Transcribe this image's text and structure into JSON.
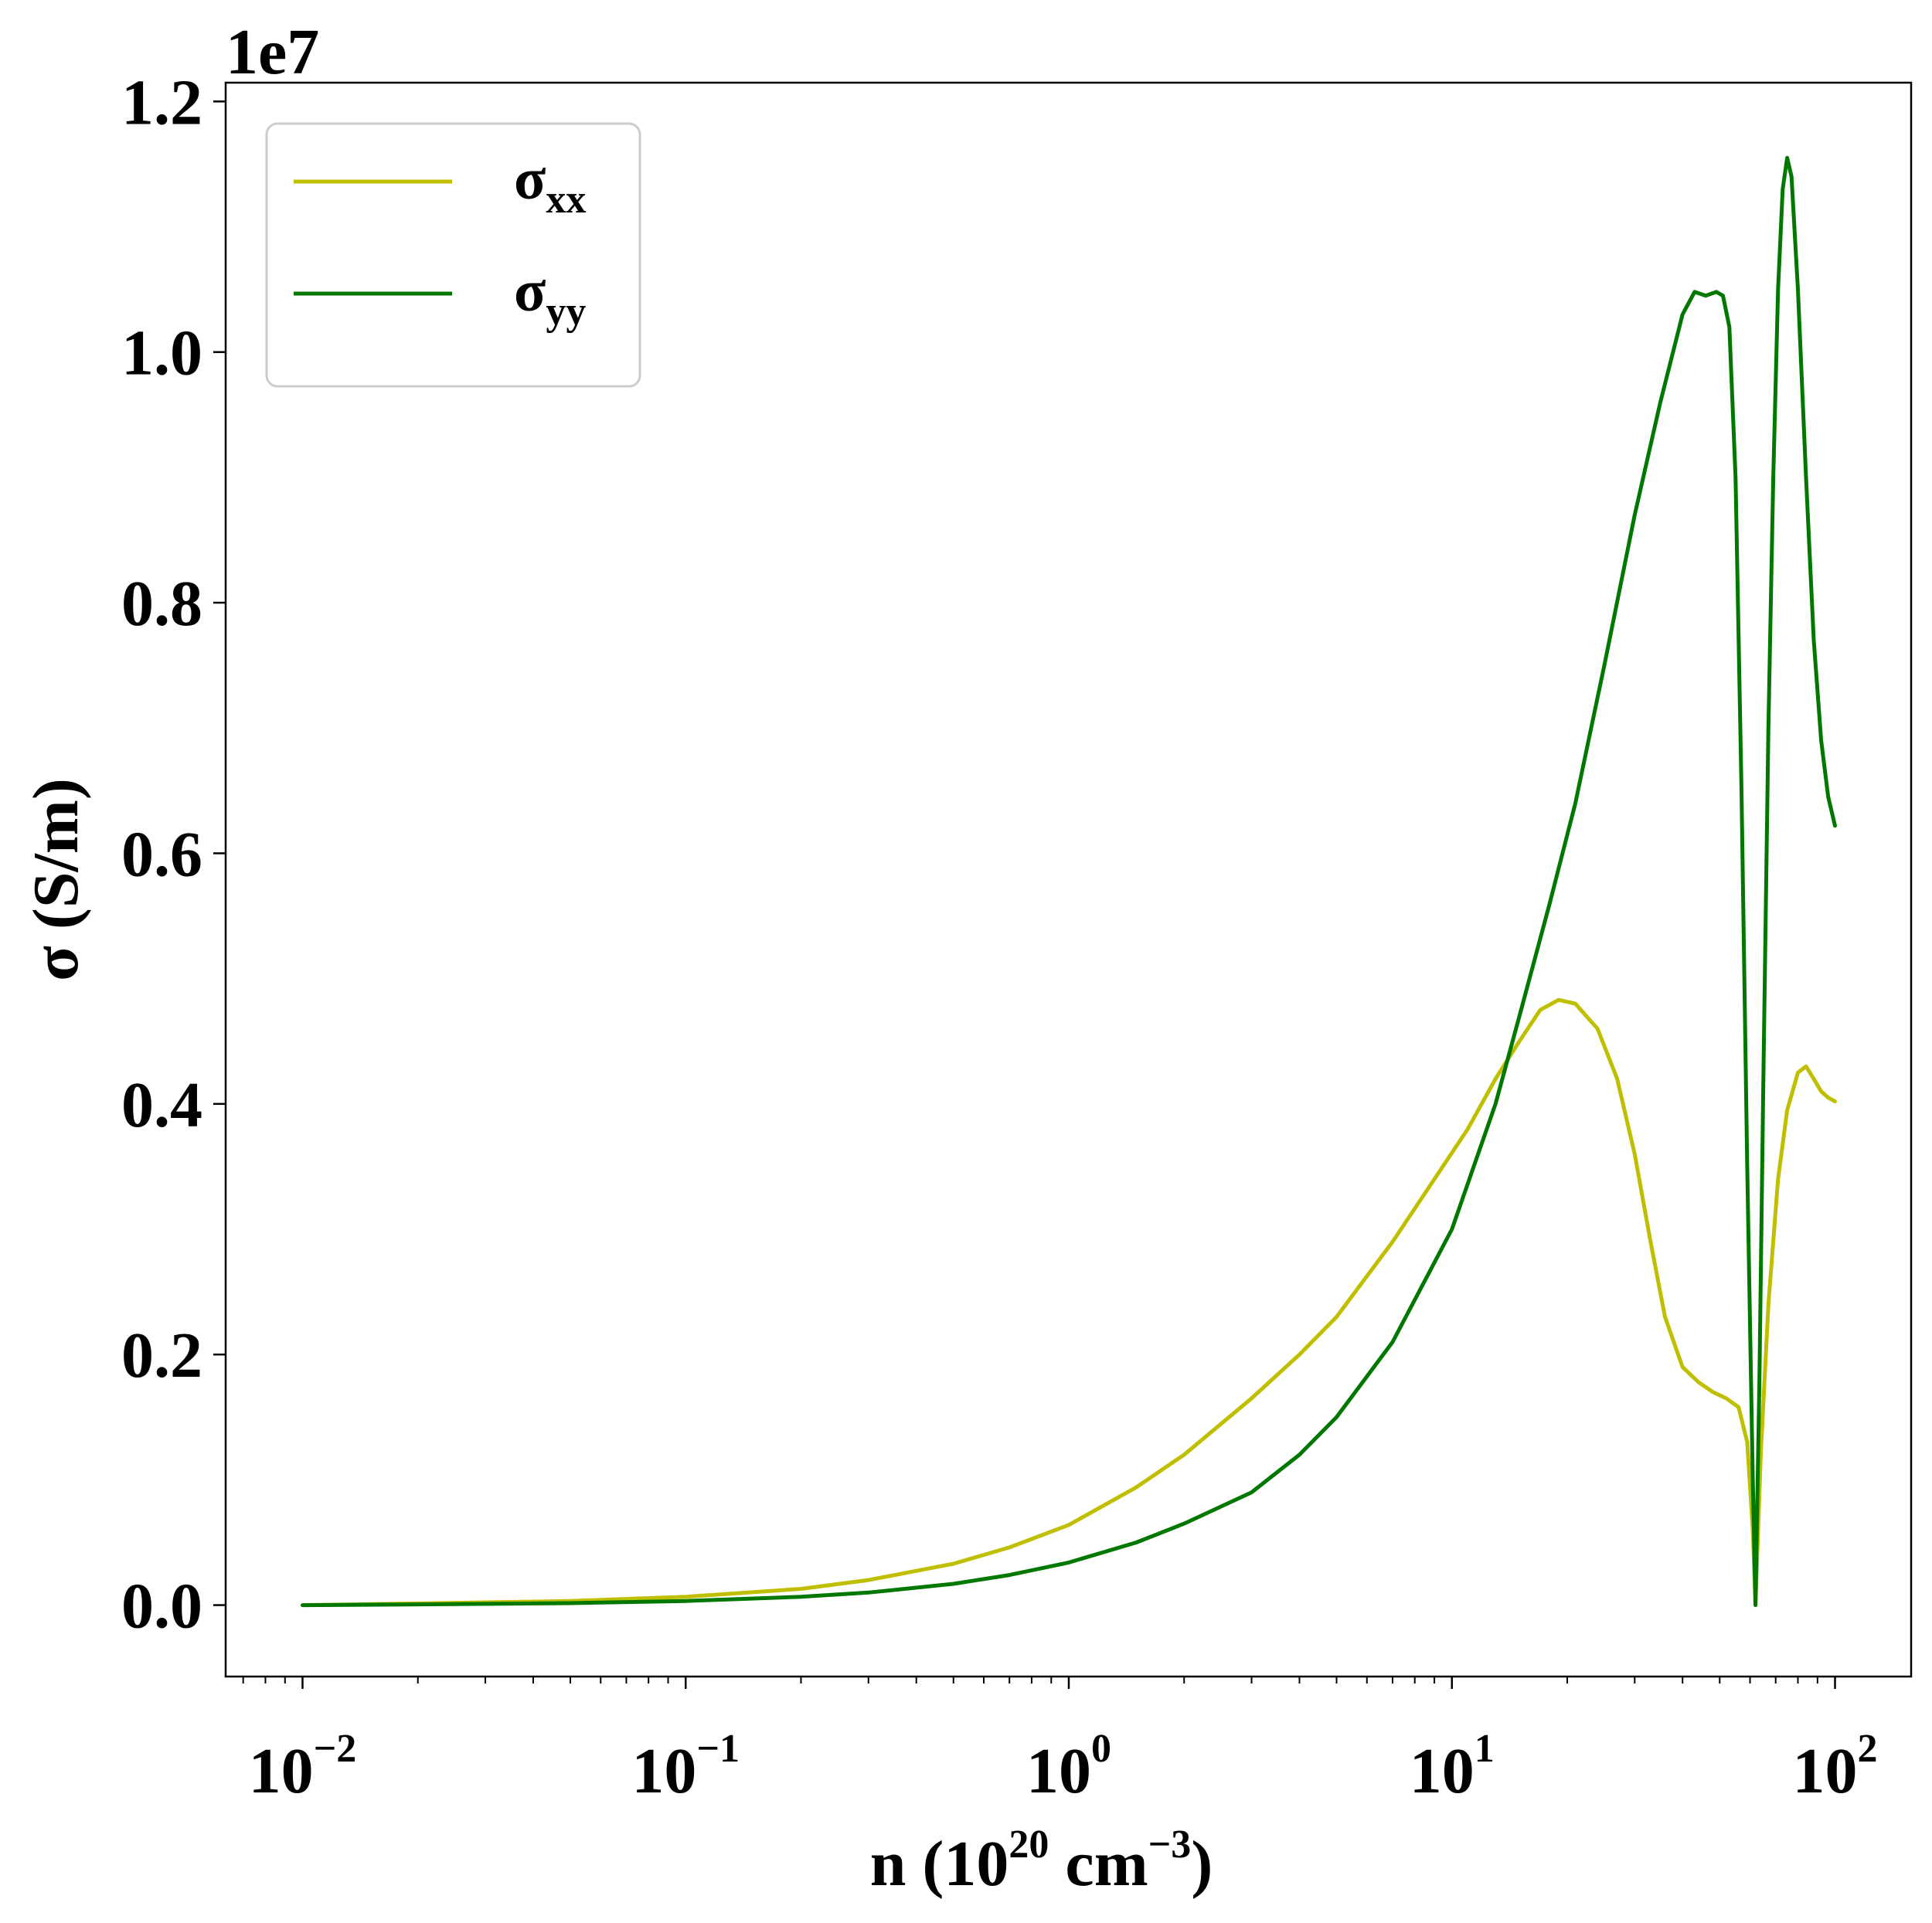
{
  "chart_data": {
    "type": "line",
    "title": "",
    "xlabel": {
      "base": "n (10",
      "sup1": "20",
      "mid": " cm",
      "sup2": "−3",
      "end": ")"
    },
    "ylabel": "σ (S/m)",
    "y_multiplier": "1e7",
    "xscale": "log",
    "xlim": [
      0.0063,
      158
    ],
    "ylim": [
      -0.057,
      1.215
    ],
    "x_ticks": [
      0.01,
      0.1,
      1,
      10,
      100
    ],
    "x_tick_labels": [
      {
        "base": "10",
        "exp": "−2"
      },
      {
        "base": "10",
        "exp": "−1"
      },
      {
        "base": "10",
        "exp": "0"
      },
      {
        "base": "10",
        "exp": "1"
      },
      {
        "base": "10",
        "exp": "2"
      }
    ],
    "y_ticks": [
      0.0,
      0.2,
      0.4,
      0.6,
      0.8,
      1.0,
      1.2
    ],
    "y_tick_labels": [
      "0.0",
      "0.2",
      "0.4",
      "0.6",
      "0.8",
      "1.0",
      "1.2"
    ],
    "grid": false,
    "legend_position": "top-left",
    "series": [
      {
        "name": "σ",
        "name_sub": "xx",
        "color": "#bfbf00",
        "points": [
          [
            0.01,
            0.0
          ],
          [
            0.02,
            0.0013
          ],
          [
            0.05,
            0.0033
          ],
          [
            0.1,
            0.0066
          ],
          [
            0.2,
            0.013
          ],
          [
            0.3,
            0.02
          ],
          [
            0.5,
            0.033
          ],
          [
            0.7,
            0.046
          ],
          [
            1.0,
            0.064
          ],
          [
            1.5,
            0.094
          ],
          [
            2.0,
            0.12
          ],
          [
            3.0,
            0.165
          ],
          [
            4.0,
            0.2
          ],
          [
            5.0,
            0.23
          ],
          [
            7.0,
            0.29
          ],
          [
            9.0,
            0.34
          ],
          [
            11.0,
            0.38
          ],
          [
            13.0,
            0.42
          ],
          [
            15.0,
            0.45
          ],
          [
            17.0,
            0.475
          ],
          [
            19.0,
            0.483
          ],
          [
            21.0,
            0.48
          ],
          [
            24.0,
            0.46
          ],
          [
            27.0,
            0.42
          ],
          [
            30.0,
            0.36
          ],
          [
            33.0,
            0.29
          ],
          [
            36.0,
            0.23
          ],
          [
            40.0,
            0.19
          ],
          [
            44.0,
            0.178
          ],
          [
            48.0,
            0.17
          ],
          [
            52.0,
            0.165
          ],
          [
            56.0,
            0.158
          ],
          [
            59.0,
            0.13
          ],
          [
            61.0,
            0.06
          ],
          [
            62.0,
            0.0
          ],
          [
            64.0,
            0.12
          ],
          [
            67.0,
            0.24
          ],
          [
            71.0,
            0.34
          ],
          [
            75.0,
            0.395
          ],
          [
            80.0,
            0.425
          ],
          [
            84.0,
            0.43
          ],
          [
            88.0,
            0.42
          ],
          [
            92.0,
            0.41
          ],
          [
            96.0,
            0.405
          ],
          [
            100.0,
            0.402
          ]
        ]
      },
      {
        "name": "σ",
        "name_sub": "yy",
        "color": "#007800",
        "points": [
          [
            0.01,
            0.0
          ],
          [
            0.02,
            0.0006
          ],
          [
            0.05,
            0.0016
          ],
          [
            0.1,
            0.0033
          ],
          [
            0.2,
            0.0066
          ],
          [
            0.3,
            0.01
          ],
          [
            0.5,
            0.017
          ],
          [
            0.7,
            0.024
          ],
          [
            1.0,
            0.034
          ],
          [
            1.5,
            0.05
          ],
          [
            2.0,
            0.065
          ],
          [
            3.0,
            0.09
          ],
          [
            4.0,
            0.12
          ],
          [
            5.0,
            0.15
          ],
          [
            7.0,
            0.21
          ],
          [
            10.0,
            0.3
          ],
          [
            13.0,
            0.4
          ],
          [
            15.0,
            0.47
          ],
          [
            18.0,
            0.56
          ],
          [
            21.0,
            0.64
          ],
          [
            25.0,
            0.75
          ],
          [
            30.0,
            0.87
          ],
          [
            35.0,
            0.96
          ],
          [
            40.0,
            1.03
          ],
          [
            43.0,
            1.048
          ],
          [
            46.0,
            1.045
          ],
          [
            49.0,
            1.048
          ],
          [
            51.0,
            1.045
          ],
          [
            53.0,
            1.02
          ],
          [
            55.0,
            0.9
          ],
          [
            57.0,
            0.65
          ],
          [
            59.0,
            0.35
          ],
          [
            61.0,
            0.1
          ],
          [
            62.0,
            0.0
          ],
          [
            63.5,
            0.18
          ],
          [
            65.0,
            0.42
          ],
          [
            67.0,
            0.7
          ],
          [
            69.0,
            0.9
          ],
          [
            71.0,
            1.05
          ],
          [
            73.0,
            1.13
          ],
          [
            75.0,
            1.155
          ],
          [
            77.0,
            1.14
          ],
          [
            80.0,
            1.05
          ],
          [
            84.0,
            0.9
          ],
          [
            88.0,
            0.77
          ],
          [
            92.0,
            0.69
          ],
          [
            96.0,
            0.645
          ],
          [
            100.0,
            0.622
          ]
        ]
      }
    ]
  }
}
